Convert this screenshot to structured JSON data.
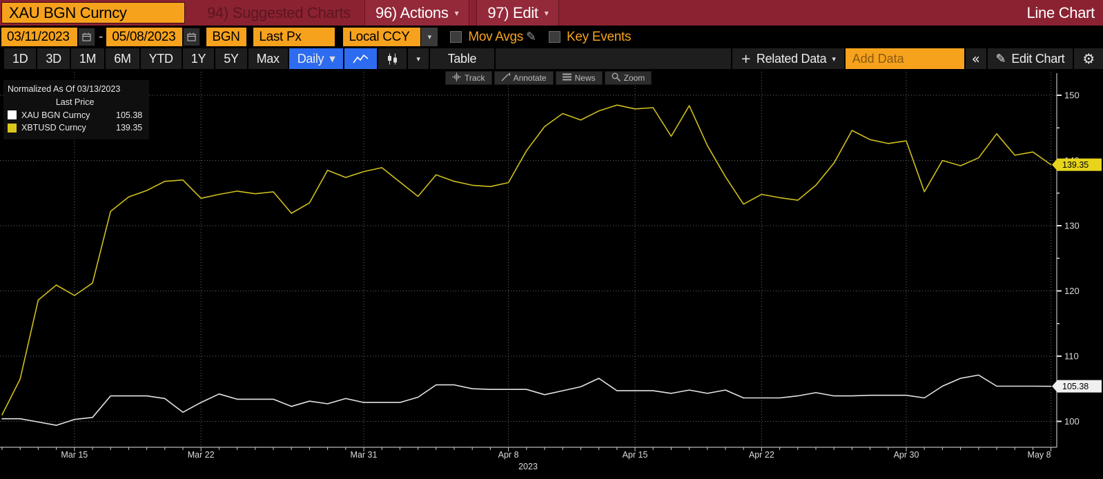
{
  "titlebar": {
    "security": "XAU BGN Curncy",
    "suggested_charts": "94) Suggested Charts",
    "actions": "96) Actions",
    "edit": "97) Edit",
    "chart_kind": "Line Chart"
  },
  "controls": {
    "date_from": "03/11/2023",
    "date_to": "05/08/2023",
    "dash": "-",
    "source": "BGN",
    "price_field": "Last Px",
    "currency": "Local CCY",
    "mov_avgs_label": "Mov Avgs",
    "key_events_label": "Key Events"
  },
  "toolbar": {
    "periods": [
      "1D",
      "3D",
      "1M",
      "6M",
      "YTD",
      "1Y",
      "5Y",
      "Max"
    ],
    "frequency": "Daily",
    "table_label": "Table",
    "related_data_label": "Related Data",
    "add_data_placeholder": "Add Data",
    "edit_chart_label": "Edit Chart"
  },
  "icons": {
    "caret": "▼",
    "small_caret": "▾",
    "pencil": "✎",
    "gear": "⚙",
    "collapse": "«",
    "plus": "+"
  },
  "chart_tools": [
    "Track",
    "Annotate",
    "News",
    "Zoom"
  ],
  "legend": {
    "normalized": "Normalized As Of 03/13/2023",
    "header": "Last Price",
    "items": [
      {
        "label": "XAU BGN Curncy",
        "value": "105.38",
        "color": "#ffffff"
      },
      {
        "label": "XBTUSD Curncy",
        "value": "139.35",
        "color": "#d9c81b"
      }
    ]
  },
  "chart_data": {
    "type": "line",
    "title": "",
    "xlabel": "",
    "ylabel": "",
    "grid": "dotted",
    "legend_position": "top-left",
    "ylim": [
      96,
      151.5
    ],
    "y_ticks": [
      100,
      110,
      120,
      130,
      140,
      150
    ],
    "y_minor_ticks": [
      105,
      115,
      125,
      135,
      145
    ],
    "year_label": "2023",
    "x_dates": [
      "03/11",
      "03/12",
      "03/13",
      "03/14",
      "03/15",
      "03/16",
      "03/17",
      "03/18",
      "03/19",
      "03/20",
      "03/21",
      "03/22",
      "03/23",
      "03/24",
      "03/25",
      "03/26",
      "03/27",
      "03/28",
      "03/29",
      "03/30",
      "03/31",
      "04/01",
      "04/02",
      "04/03",
      "04/04",
      "04/05",
      "04/06",
      "04/07",
      "04/08",
      "04/09",
      "04/10",
      "04/11",
      "04/12",
      "04/13",
      "04/14",
      "04/15",
      "04/16",
      "04/17",
      "04/18",
      "04/19",
      "04/20",
      "04/21",
      "04/22",
      "04/23",
      "04/24",
      "04/25",
      "04/26",
      "04/27",
      "04/28",
      "04/29",
      "04/30",
      "05/01",
      "05/02",
      "05/03",
      "05/04",
      "05/05",
      "05/06",
      "05/07",
      "05/08"
    ],
    "x_tick_labels": [
      "Mar 15",
      "Mar 22",
      "Mar 31",
      "Apr 8",
      "Apr 15",
      "Apr 22",
      "Apr 30",
      "May 8"
    ],
    "x_tick_indices": [
      4,
      11,
      20,
      28,
      35,
      42,
      50,
      58
    ],
    "series": [
      {
        "name": "XBTUSD Curncy",
        "color": "#cfc01d",
        "badge_bg": "#e7d51d",
        "last_label": "139.35",
        "values": [
          101.0,
          106.5,
          118.6,
          120.9,
          119.3,
          121.2,
          132.2,
          134.4,
          135.4,
          136.8,
          137.0,
          134.2,
          134.8,
          135.3,
          134.9,
          135.2,
          131.9,
          133.5,
          138.5,
          137.4,
          138.3,
          138.9,
          136.7,
          134.5,
          137.8,
          136.8,
          136.2,
          136.0,
          136.6,
          141.5,
          145.2,
          147.2,
          146.2,
          147.6,
          148.5,
          147.9,
          148.1,
          143.7,
          148.4,
          142.3,
          137.5,
          133.3,
          134.8,
          134.3,
          133.9,
          136.2,
          139.6,
          144.6,
          143.2,
          142.6,
          143.0,
          135.2,
          140.0,
          139.2,
          140.4,
          144.1,
          140.8,
          141.3,
          139.35
        ]
      },
      {
        "name": "XAU BGN Curncy",
        "color": "#e4e4e4",
        "badge_bg": "#f0f0f0",
        "last_label": "105.38",
        "values": [
          100.4,
          100.4,
          99.9,
          99.4,
          100.3,
          100.6,
          103.9,
          103.9,
          103.9,
          103.5,
          101.4,
          102.9,
          104.2,
          103.4,
          103.4,
          103.4,
          102.3,
          103.1,
          102.7,
          103.5,
          102.9,
          102.9,
          102.9,
          103.7,
          105.6,
          105.6,
          105.0,
          104.9,
          104.9,
          104.9,
          104.1,
          104.7,
          105.3,
          106.6,
          104.7,
          104.7,
          104.7,
          104.3,
          104.8,
          104.3,
          104.8,
          103.6,
          103.6,
          103.6,
          103.9,
          104.4,
          103.9,
          103.9,
          104.0,
          104.0,
          104.0,
          103.6,
          105.4,
          106.6,
          107.1,
          105.4,
          105.4,
          105.4,
          105.38
        ]
      }
    ]
  }
}
